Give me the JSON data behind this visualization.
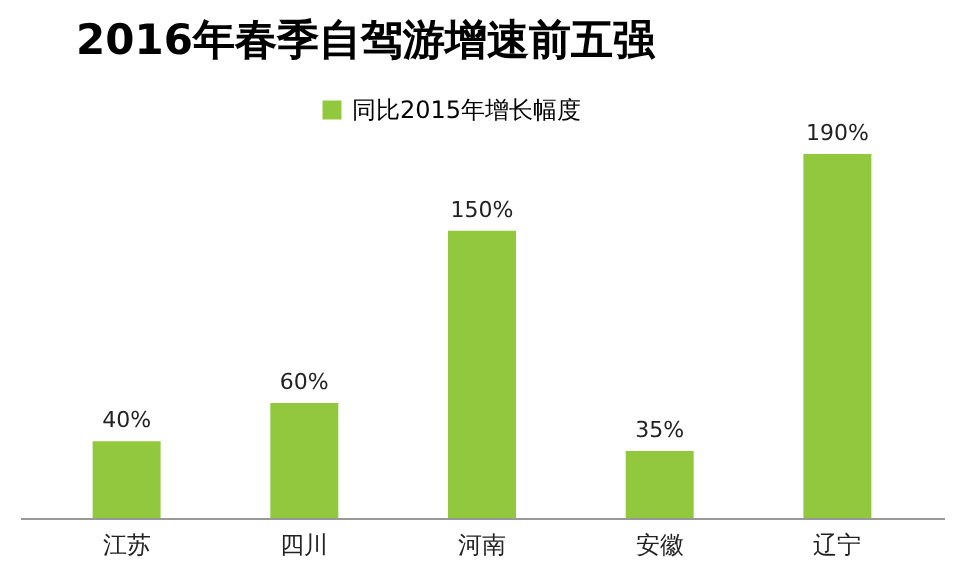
{
  "chart_data": {
    "type": "bar",
    "title": "2016年春季自驾游增速前五强",
    "categories": [
      "江苏",
      "四川",
      "河南",
      "安徽",
      "辽宁"
    ],
    "series": [
      {
        "name": "同比2015年增长幅度",
        "color": "#92c83e",
        "values": [
          40,
          60,
          150,
          35,
          190
        ],
        "value_labels": [
          "40%",
          "60%",
          "150%",
          "35%",
          "190%"
        ]
      }
    ],
    "legend": "top"
  }
}
